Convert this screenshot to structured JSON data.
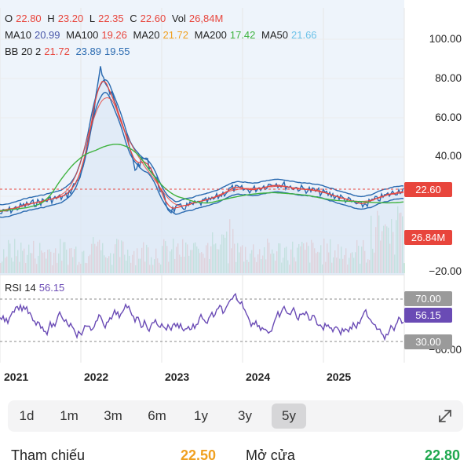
{
  "ohlc": {
    "o_label": "O",
    "o": "22.80",
    "h_label": "H",
    "h": "23.20",
    "l_label": "L",
    "l": "22.35",
    "c_label": "C",
    "c": "22.60",
    "vol_label": "Vol",
    "vol": "26,84M"
  },
  "ma": {
    "ma10_label": "MA10",
    "ma10": "20.99",
    "ma100_label": "MA100",
    "ma100": "19.26",
    "ma20_label": "MA20",
    "ma20": "21.72",
    "ma200_label": "MA200",
    "ma200": "17.42",
    "ma50_label": "MA50",
    "ma50": "21.66"
  },
  "bb": {
    "label": "BB 20 2",
    "v1": "21.72",
    "v2": "23.89",
    "v3": "19.55"
  },
  "axis": {
    "p100": "100.00",
    "p80": "80.00",
    "p60": "60.00",
    "p40": "40.00",
    "p20": "20.00",
    "pneg20": "−20.00",
    "rneg60": "−60.00"
  },
  "tags": {
    "price": "22.60",
    "volume": "26.84M",
    "rsi70": "70.00",
    "rsi": "56.15",
    "rsi30": "30.00"
  },
  "rsi": {
    "label": "RSI 14",
    "value": "56.15"
  },
  "years": [
    "2021",
    "2022",
    "2023",
    "2024",
    "2025"
  ],
  "ranges": [
    "1d",
    "1m",
    "3m",
    "6m",
    "1y",
    "3y",
    "5y"
  ],
  "active_range": "5y",
  "info": {
    "ref_label": "Tham chiếu",
    "ref_value": "22.50",
    "open_label": "Mở cửa",
    "open_value": "22.80"
  },
  "colors": {
    "up": "#1fa84f",
    "down": "#e8453c",
    "price_tag": "#e8453c",
    "rsi_line": "#6a4bb5",
    "rsi_tag": "#6a4bb5",
    "grey_tag": "#9a9a9a",
    "ma10": "#e8453c",
    "ma100": "#4a57a8",
    "ma20": "#f0a020",
    "ma200": "#3fb33f",
    "ma50": "#6cc2e8",
    "bb": "#2a6ab0"
  },
  "icons": {
    "expand": "expand-icon"
  }
}
